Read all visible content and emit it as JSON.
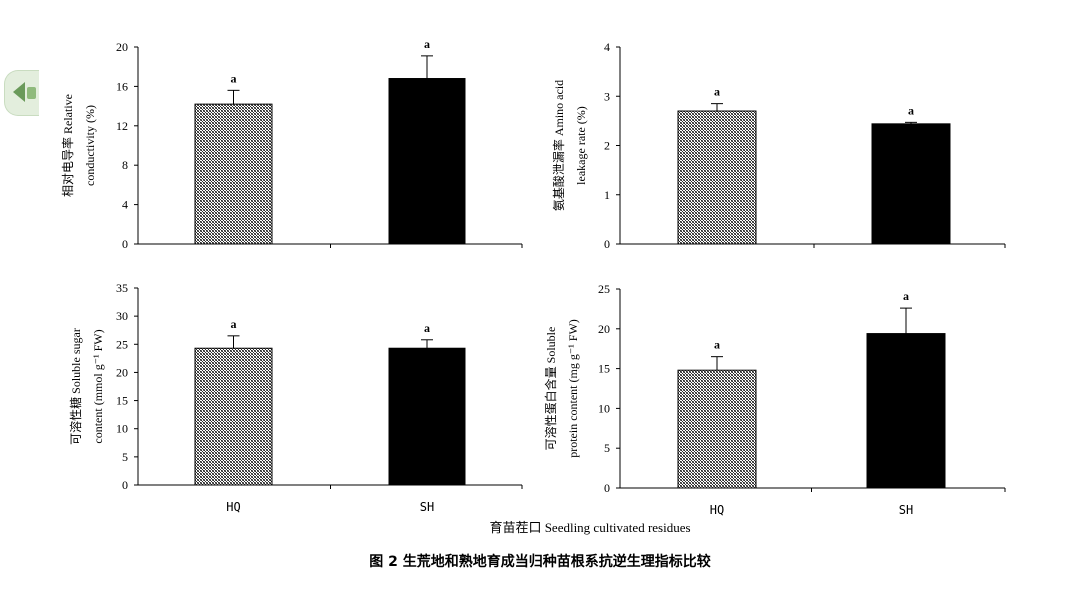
{
  "figure_caption": "图 2  生荒地和熟地育成当归种苗根系抗逆生理指标比较",
  "x_axis_title": "育苗茬口 Seedling cultivated residues",
  "chart_data": [
    {
      "type": "bar",
      "categories": [
        "HQ",
        "SH"
      ],
      "values": [
        14.2,
        16.8
      ],
      "errors": [
        1.4,
        2.3
      ],
      "significance": [
        "a",
        "a"
      ],
      "ylabel_cn": "相对电导率 Relative",
      "ylabel_en": "conductivity (%)",
      "ylim": [
        0,
        20
      ],
      "yticks": [
        "0",
        "4",
        "8",
        "12",
        "16",
        "20"
      ],
      "colors": [
        "#8f8f8f",
        "#000000"
      ]
    },
    {
      "type": "bar",
      "categories": [
        "HQ",
        "SH"
      ],
      "values": [
        2.7,
        2.44
      ],
      "errors": [
        0.15,
        0.03
      ],
      "significance": [
        "a",
        "a"
      ],
      "ylabel_cn": "氨基酸泄漏率 Amino acid",
      "ylabel_en": "leakage rate  (%)",
      "ylim": [
        0,
        4
      ],
      "yticks": [
        "0",
        "1",
        "2",
        "3",
        "4"
      ],
      "colors": [
        "#8f8f8f",
        "#000000"
      ]
    },
    {
      "type": "bar",
      "categories": [
        "HQ",
        "SH"
      ],
      "values": [
        24.3,
        24.3
      ],
      "errors": [
        2.2,
        1.5
      ],
      "significance": [
        "a",
        "a"
      ],
      "ylabel_cn": "可溶性糖 Soluble sugar",
      "ylabel_en": "content (mmol g⁻¹ FW)",
      "ylim": [
        0,
        35
      ],
      "yticks": [
        "0",
        "5",
        "10",
        "15",
        "20",
        "25",
        "30",
        "35"
      ],
      "colors": [
        "#8f8f8f",
        "#000000"
      ]
    },
    {
      "type": "bar",
      "categories": [
        "HQ",
        "SH"
      ],
      "values": [
        14.8,
        19.4
      ],
      "errors": [
        1.7,
        3.2
      ],
      "significance": [
        "a",
        "a"
      ],
      "ylabel_cn": "可溶性蛋白含量 Soluble",
      "ylabel_en": "protein content (mg g⁻¹ FW)",
      "ylim": [
        0,
        25
      ],
      "yticks": [
        "0",
        "5",
        "10",
        "15",
        "20",
        "25"
      ],
      "colors": [
        "#8f8f8f",
        "#000000"
      ]
    }
  ]
}
